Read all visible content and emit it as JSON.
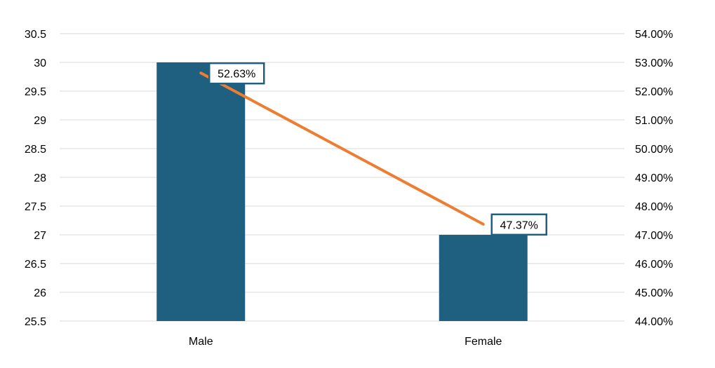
{
  "colors": {
    "bar": "#1f6080",
    "line": "#ed7d31",
    "grid": "#d9d9d9",
    "label_border": "#1f6080",
    "background": "#ffffff"
  },
  "chart_data": {
    "type": "bar",
    "title": "",
    "xlabel": "",
    "ylabel": "",
    "grid": true,
    "legend": "none",
    "categories": [
      "Male",
      "Female"
    ],
    "series": [
      {
        "type": "bar",
        "axis": "left",
        "values": [
          30,
          27
        ]
      },
      {
        "type": "line",
        "axis": "right",
        "values": [
          0.5263,
          0.4737
        ],
        "data_labels": [
          "52.63%",
          "47.37%"
        ]
      }
    ],
    "y_left": {
      "ylim": [
        25.5,
        30.5
      ],
      "ticks": [
        25.5,
        26,
        26.5,
        27,
        27.5,
        28,
        28.5,
        29,
        29.5,
        30,
        30.5
      ],
      "tick_labels": [
        "25.5",
        "26",
        "26.5",
        "27",
        "27.5",
        "28",
        "28.5",
        "29",
        "29.5",
        "30",
        "30.5"
      ]
    },
    "y_right": {
      "ylim": [
        0.44,
        0.54
      ],
      "ticks": [
        0.44,
        0.45,
        0.46,
        0.47,
        0.48,
        0.49,
        0.5,
        0.51,
        0.52,
        0.53,
        0.54
      ],
      "tick_labels": [
        "44.00%",
        "45.00%",
        "46.00%",
        "47.00%",
        "48.00%",
        "49.00%",
        "50.00%",
        "51.00%",
        "52.00%",
        "53.00%",
        "54.00%"
      ]
    }
  }
}
